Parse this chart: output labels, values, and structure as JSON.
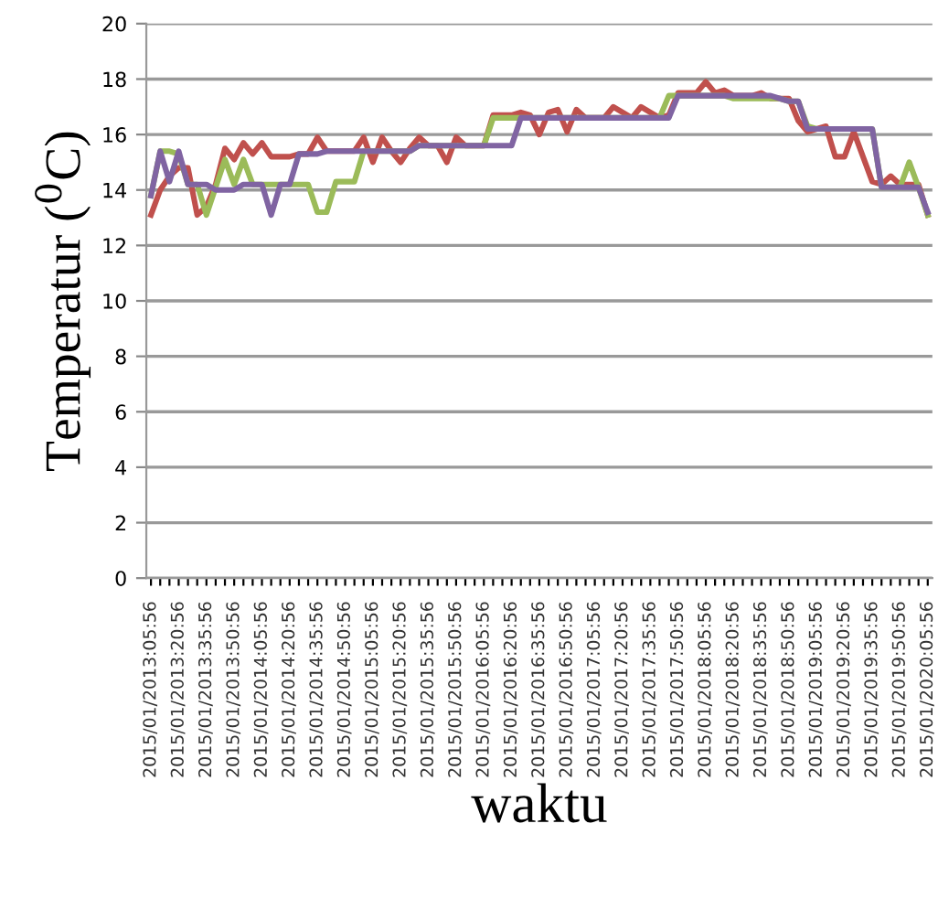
{
  "chart_data": {
    "type": "line",
    "xlabel": "waktu",
    "ylabel": "Temperatur ($^{0}$C)",
    "categories": [
      "2015/01/2013:05:56",
      null,
      null,
      "2015/01/2013:20:56",
      null,
      null,
      "2015/01/2013:35:56",
      null,
      null,
      "2015/01/2013:50:56",
      null,
      null,
      "2015/01/2014:05:56",
      null,
      null,
      "2015/01/2014:20:56",
      null,
      null,
      "2015/01/2014:35:56",
      null,
      null,
      "2015/01/2014:50:56",
      null,
      null,
      "2015/01/2015:05:56",
      null,
      null,
      "2015/01/2015:20:56",
      null,
      null,
      "2015/01/2015:35:56",
      null,
      null,
      "2015/01/2015:50:56",
      null,
      null,
      "2015/01/2016:05:56",
      null,
      null,
      "2015/01/2016:20:56",
      null,
      null,
      "2015/01/2016:35:56",
      null,
      null,
      "2015/01/2016:50:56",
      null,
      null,
      "2015/01/2017:05:56",
      null,
      null,
      "2015/01/2017:20:56",
      null,
      null,
      "2015/01/2017:35:56",
      null,
      null,
      "2015/01/2017:50:56",
      null,
      null,
      "2015/01/2018:05:56",
      null,
      null,
      "2015/01/2018:20:56",
      null,
      null,
      "2015/01/2018:35:56",
      null,
      null,
      "2015/01/2018:50:56",
      null,
      null,
      "2015/01/2019:05:56",
      null,
      null,
      "2015/01/2019:20:56",
      null,
      null,
      "2015/01/2019:35:56",
      null,
      null,
      "2015/01/2019:50:56",
      null,
      null,
      "2015/01/2020:05:56"
    ],
    "series": [
      {
        "color": "#c0504d",
        "values": [
          13.1,
          14.0,
          14.5,
          14.8,
          14.8,
          13.1,
          13.4,
          14.2,
          15.5,
          15.1,
          15.7,
          15.3,
          15.7,
          15.2,
          15.2,
          15.2,
          15.3,
          15.3,
          15.9,
          15.4,
          15.4,
          15.4,
          15.4,
          15.9,
          15.0,
          15.9,
          15.4,
          15.0,
          15.5,
          15.9,
          15.6,
          15.6,
          15.0,
          15.9,
          15.6,
          15.6,
          15.6,
          16.7,
          16.7,
          16.7,
          16.8,
          16.7,
          16.0,
          16.8,
          16.9,
          16.1,
          16.9,
          16.6,
          16.6,
          16.6,
          17.0,
          16.8,
          16.6,
          17.0,
          16.8,
          16.6,
          16.7,
          17.5,
          17.5,
          17.5,
          17.9,
          17.5,
          17.6,
          17.4,
          17.4,
          17.4,
          17.5,
          17.3,
          17.3,
          17.3,
          16.5,
          16.1,
          16.2,
          16.3,
          15.2,
          15.2,
          16.1,
          15.2,
          14.3,
          14.2,
          14.5,
          14.2,
          14.2,
          14.2,
          13.1
        ]
      },
      {
        "color": "#9bbb59",
        "values": [
          13.8,
          15.4,
          15.4,
          15.3,
          14.2,
          14.2,
          13.1,
          14.1,
          15.1,
          14.2,
          15.1,
          14.2,
          14.2,
          14.2,
          14.2,
          14.2,
          14.2,
          14.2,
          13.2,
          13.2,
          14.3,
          14.3,
          14.3,
          15.4,
          15.4,
          15.4,
          15.4,
          15.4,
          15.4,
          15.6,
          15.6,
          15.6,
          15.6,
          15.6,
          15.6,
          15.6,
          15.6,
          16.6,
          16.6,
          16.6,
          16.6,
          16.6,
          16.6,
          16.6,
          16.6,
          16.6,
          16.6,
          16.6,
          16.6,
          16.6,
          16.6,
          16.6,
          16.6,
          16.6,
          16.6,
          16.6,
          17.4,
          17.4,
          17.4,
          17.4,
          17.4,
          17.4,
          17.4,
          17.3,
          17.3,
          17.3,
          17.3,
          17.3,
          17.3,
          17.2,
          17.2,
          16.3,
          16.2,
          16.2,
          16.2,
          16.2,
          16.2,
          16.2,
          16.2,
          14.1,
          14.1,
          14.1,
          15.0,
          14.1,
          13.1
        ]
      },
      {
        "color": "#8064a2",
        "values": [
          13.8,
          15.4,
          14.3,
          15.4,
          14.2,
          14.2,
          14.2,
          14.0,
          14.0,
          14.0,
          14.2,
          14.2,
          14.2,
          13.1,
          14.2,
          14.2,
          15.3,
          15.3,
          15.3,
          15.4,
          15.4,
          15.4,
          15.4,
          15.4,
          15.4,
          15.4,
          15.4,
          15.4,
          15.4,
          15.6,
          15.6,
          15.6,
          15.6,
          15.6,
          15.6,
          15.6,
          15.6,
          15.6,
          15.6,
          15.6,
          16.6,
          16.6,
          16.6,
          16.6,
          16.6,
          16.6,
          16.6,
          16.6,
          16.6,
          16.6,
          16.6,
          16.6,
          16.6,
          16.6,
          16.6,
          16.6,
          16.6,
          17.4,
          17.4,
          17.4,
          17.4,
          17.4,
          17.4,
          17.4,
          17.4,
          17.4,
          17.4,
          17.4,
          17.3,
          17.2,
          17.2,
          16.2,
          16.2,
          16.2,
          16.2,
          16.2,
          16.2,
          16.2,
          16.2,
          14.1,
          14.1,
          14.1,
          14.1,
          14.1,
          13.2
        ]
      }
    ],
    "ylim": [
      0,
      20
    ],
    "yticks": [
      0,
      2,
      4,
      6,
      8,
      10,
      12,
      14,
      16,
      18,
      20
    ],
    "grid": "y",
    "marker": "none",
    "line_style": "solid"
  }
}
